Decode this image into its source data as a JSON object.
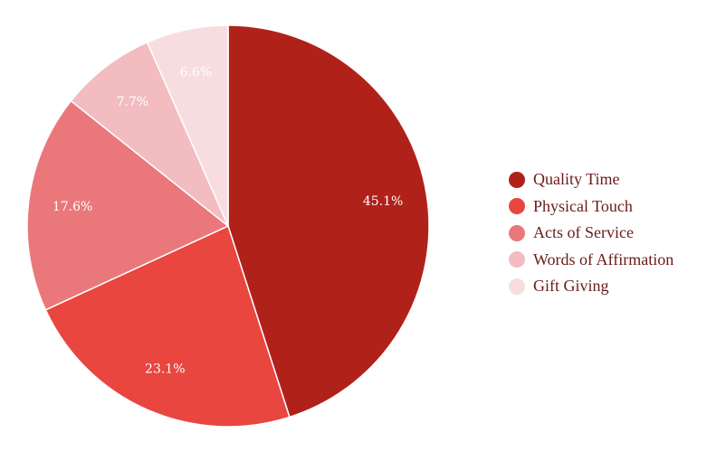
{
  "chart_data": {
    "type": "pie",
    "title": "",
    "start_angle_deg": 0,
    "direction": "clockwise",
    "legend_position": "right",
    "slices": [
      {
        "name": "Quality Time",
        "value": 45.1,
        "label": "45.1%",
        "color": "#b0211a"
      },
      {
        "name": "Physical Touch",
        "value": 23.1,
        "label": "23.1%",
        "color": "#e8463f"
      },
      {
        "name": "Acts of Service",
        "value": 17.6,
        "label": "17.6%",
        "color": "#ea787b"
      },
      {
        "name": "Words of Affirmation",
        "value": 7.7,
        "label": "7.7%",
        "color": "#f2bcc0"
      },
      {
        "name": "Gift Giving",
        "value": 6.6,
        "label": "6.6%",
        "color": "#f8dde0"
      }
    ]
  }
}
